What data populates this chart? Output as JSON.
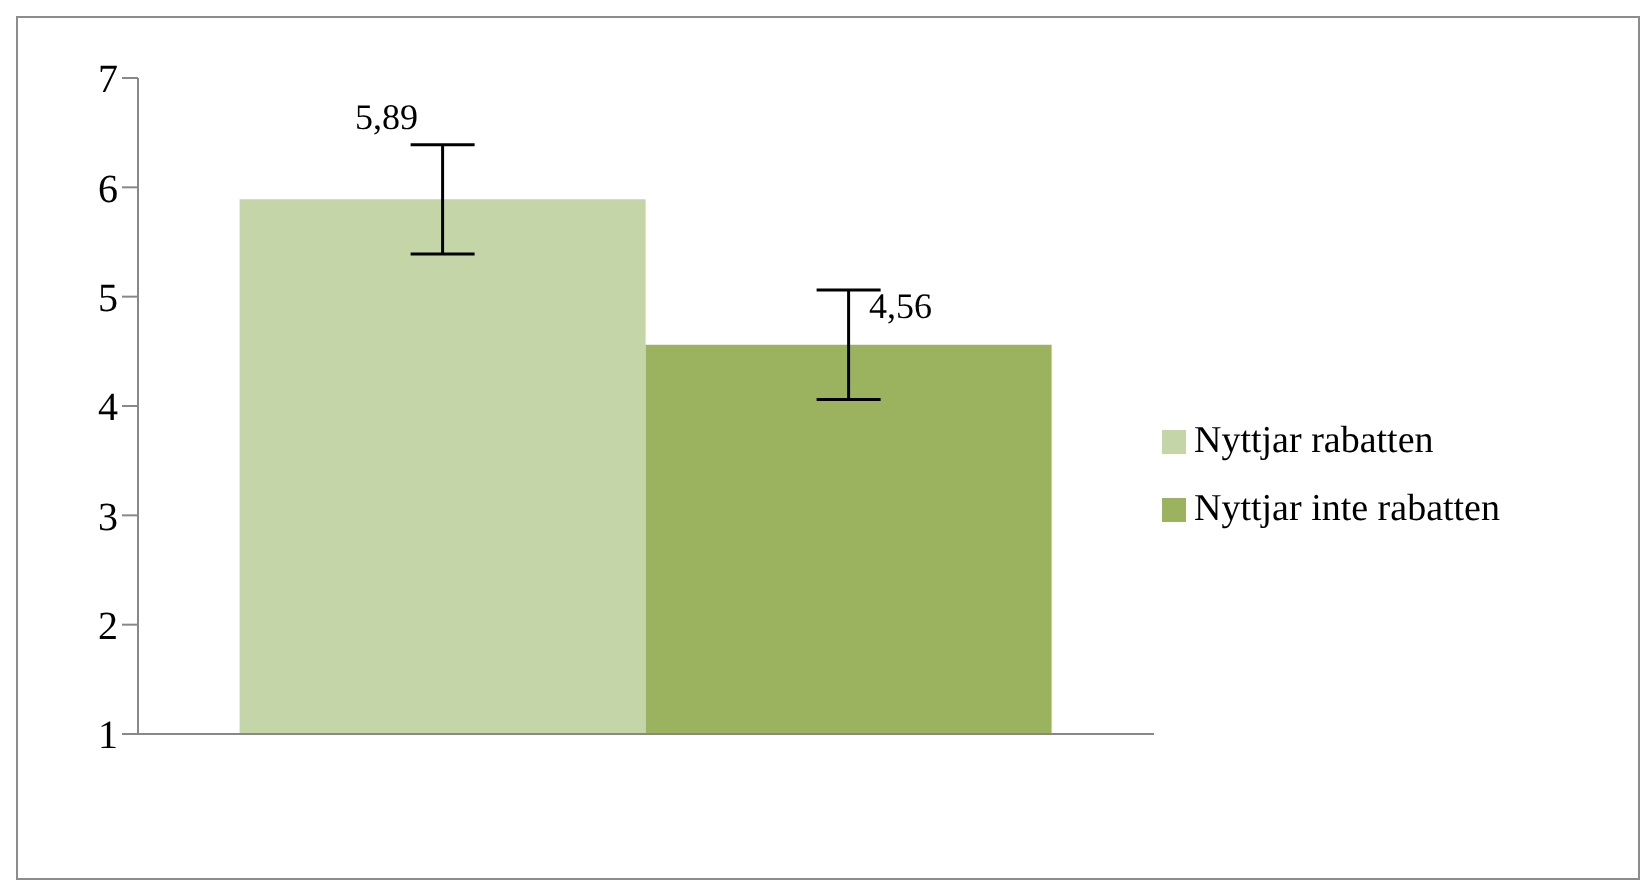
{
  "chart_data": {
    "type": "bar",
    "categories": [
      null
    ],
    "series": [
      {
        "name": "Nyttjar rabatten",
        "color": "#c4d6a8",
        "values": [
          5.89
        ],
        "errors": [
          0.5
        ],
        "value_labels": [
          "5,89"
        ]
      },
      {
        "name": "Nyttjar inte rabatten",
        "color": "#9bb35f",
        "values": [
          4.56
        ],
        "errors": [
          0.5
        ],
        "value_labels": [
          "4,56"
        ]
      }
    ],
    "ylim": [
      1,
      7
    ],
    "yticks": [
      1,
      2,
      3,
      4,
      5,
      6,
      7
    ],
    "grid": false,
    "legend": "right"
  }
}
